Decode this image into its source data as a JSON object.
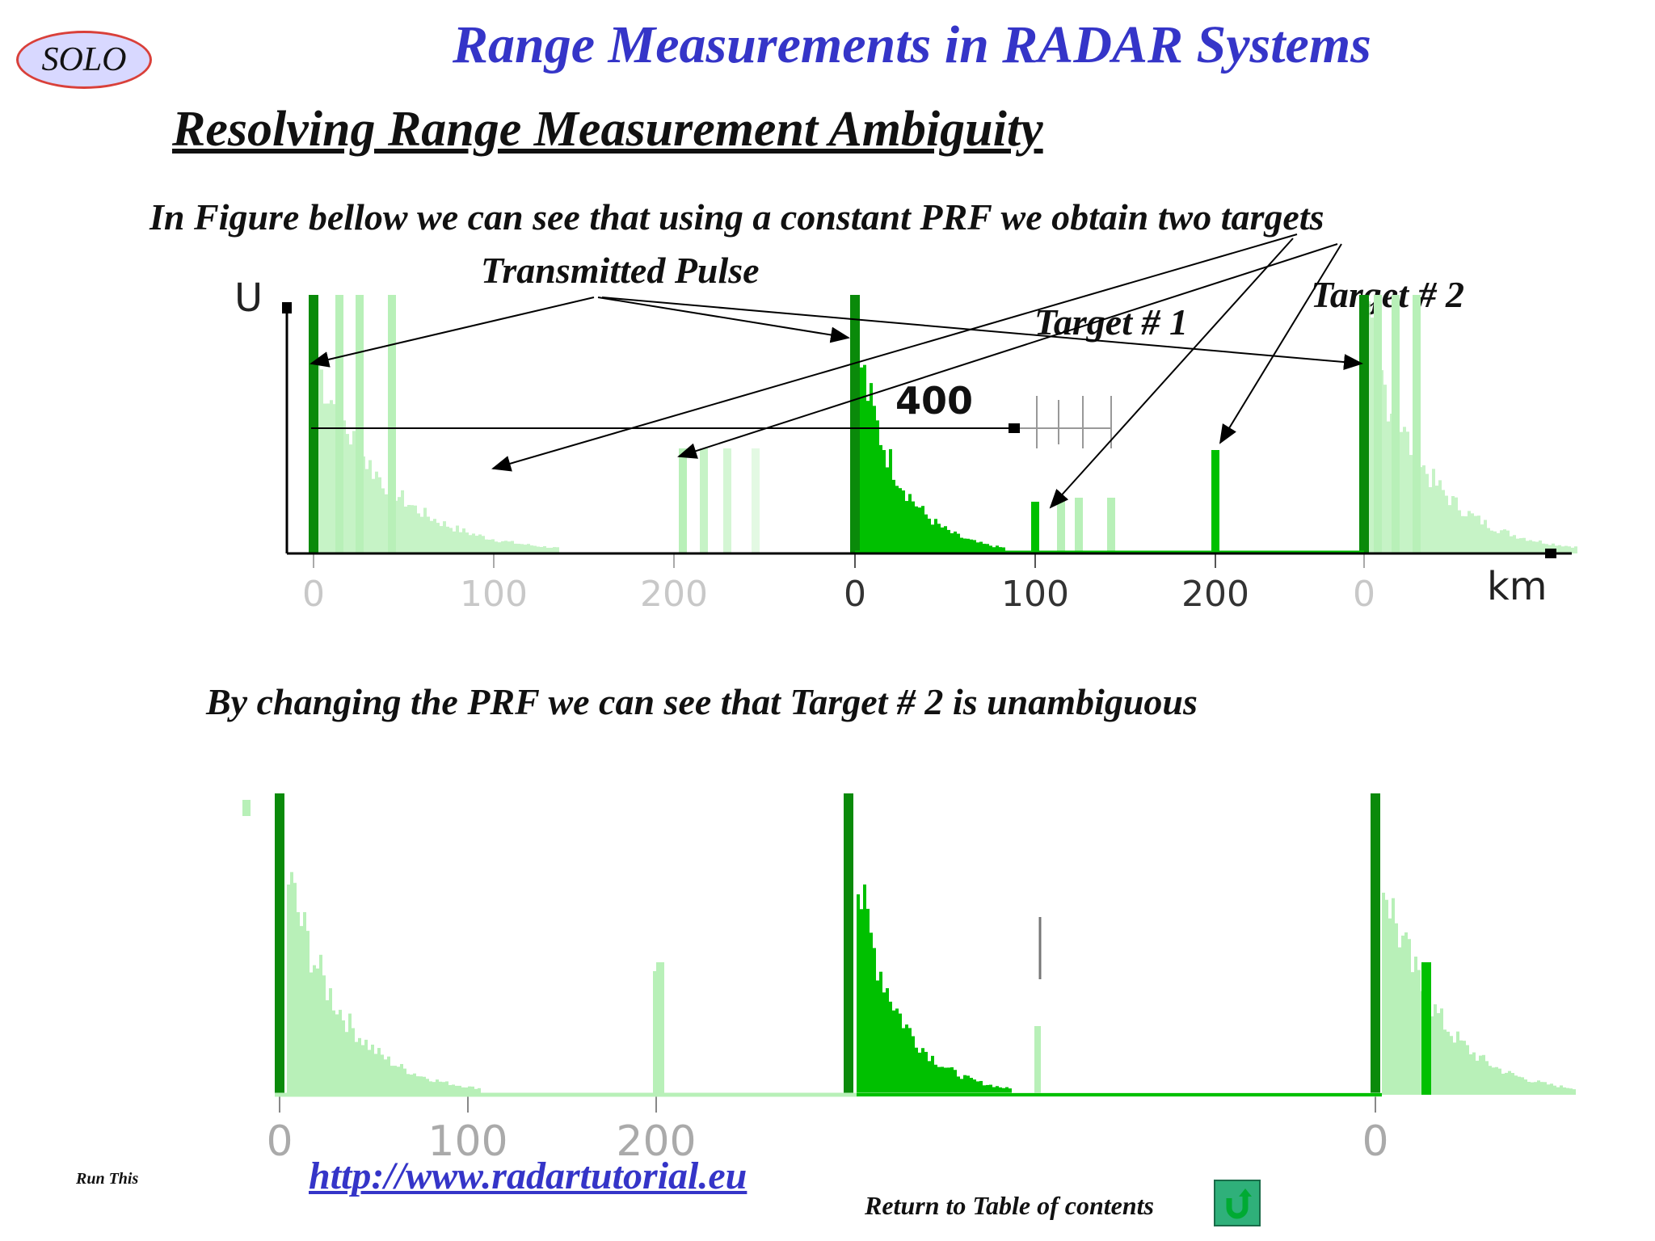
{
  "logo": "SOLO",
  "title": "Range Measurements in RADAR Systems",
  "subtitle": "Resolving Range Measurement Ambiguity",
  "caption_top": "In Figure bellow we can see that using a constant PRF we obtain two targets",
  "caption_bottom": "By changing the PRF we can see that Target # 2 is unambiguous",
  "labels": {
    "transmitted_pulse": "Transmitted Pulse",
    "target1": "Target # 1",
    "target2": "Target # 2"
  },
  "footer": {
    "run_this": "Run This",
    "url": "http://www.radartutorial.eu",
    "return_toc": "Return to Table of contents"
  },
  "colors": {
    "title": "#3535c8",
    "pulse_dark": "#0a8a0a",
    "echo": "#00c000",
    "ghost": "#b8f0b8"
  },
  "chart_data": [
    {
      "type": "bar",
      "ylabel": "U",
      "xlabel": "km",
      "x_ticks": [
        "0",
        "100",
        "200",
        "0",
        "100",
        "200",
        "0"
      ],
      "range_marker": "400",
      "pulses": [
        0,
        400
      ],
      "targets": [
        {
          "name": "Target # 1",
          "range_km": 100,
          "relative_amplitude": 0.2
        },
        {
          "name": "Target # 2",
          "range_km": 200,
          "relative_amplitude": 0.4
        }
      ]
    },
    {
      "type": "bar",
      "x_ticks": [
        "0",
        "100",
        "200",
        "0"
      ],
      "targets": [
        {
          "range_km": 200,
          "relative_amplitude": 0.4
        },
        {
          "range_km": 500,
          "relative_amplitude": 0.4
        }
      ]
    }
  ]
}
